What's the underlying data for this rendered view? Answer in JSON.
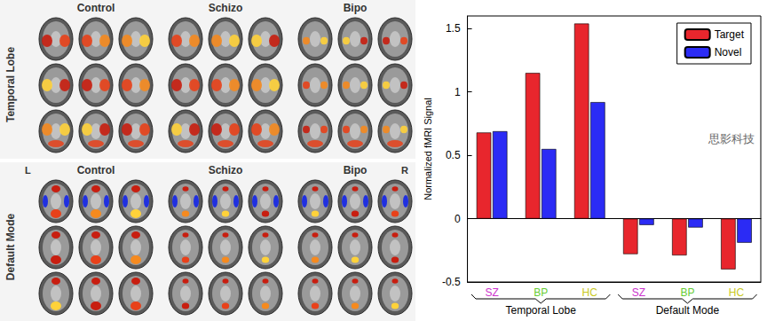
{
  "chart_data": {
    "type": "bar",
    "categories": [
      "SZ",
      "BP",
      "HC",
      "SZ",
      "BP",
      "HC"
    ],
    "group_labels": [
      "Temporal Lobe",
      "Default Mode"
    ],
    "series": [
      {
        "name": "Target",
        "color": "#e8262d",
        "values": [
          0.68,
          1.15,
          1.54,
          -0.28,
          -0.29,
          -0.4
        ]
      },
      {
        "name": "Novel",
        "color": "#2b2bf5",
        "values": [
          0.69,
          0.55,
          0.92,
          -0.05,
          -0.07,
          -0.19
        ]
      }
    ],
    "y_label": "Normalized fMRI Signal",
    "ylim": [
      -0.5,
      1.6
    ],
    "yticks": [
      -0.5,
      0,
      0.5,
      1,
      1.5
    ],
    "grid": false,
    "legend": "upper right"
  },
  "image_panels": [
    {
      "label": "Temporal Lobe",
      "columns": [
        "Control",
        "Schizo",
        "Bipo"
      ]
    },
    {
      "label": "Default Mode",
      "columns": [
        "Control",
        "Schizo",
        "Bipo"
      ],
      "side_labels": [
        "L",
        "R"
      ]
    }
  ],
  "watermark": "思影科技"
}
